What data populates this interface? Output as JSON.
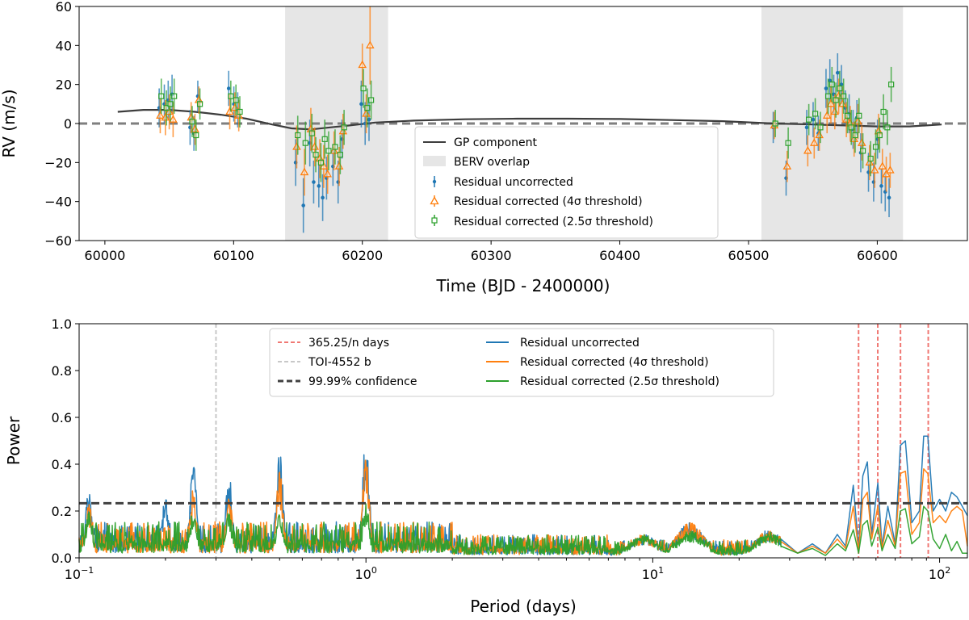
{
  "chart_data": [
    {
      "type": "scatter",
      "xlabel": "Time (BJD - 2400000)",
      "ylabel": "RV (m/s)",
      "xlim": [
        59980,
        60670
      ],
      "ylim": [
        -60,
        60
      ],
      "xticks": [
        60000,
        60100,
        60200,
        60300,
        60400,
        60500,
        60600
      ],
      "yticks": [
        -60,
        -40,
        -20,
        0,
        20,
        40,
        60
      ],
      "xtick_labels": [
        "60000",
        "60100",
        "60200",
        "60300",
        "60400",
        "60500",
        "60600"
      ],
      "ytick_labels": [
        "−60",
        "−40",
        "−20",
        "0",
        "20",
        "40",
        "60"
      ],
      "zero_line": 0,
      "shaded_regions": [
        [
          60140,
          60220
        ],
        [
          60510,
          60620
        ]
      ],
      "legend_position": "lower-center",
      "legend": [
        "GP component",
        "BERV overlap",
        "Residual uncorrected",
        "Residual corrected (4σ threshold)",
        "Residual corrected (2.5σ threshold)"
      ],
      "gp_component": {
        "x": [
          60010,
          60030,
          60050,
          60070,
          60090,
          60110,
          60130,
          60145,
          60160,
          60175,
          60190,
          60210,
          60240,
          60280,
          60320,
          60360,
          60400,
          60440,
          60480,
          60520,
          60550,
          60575,
          60600,
          60625,
          60650
        ],
        "y": [
          6,
          7,
          7,
          6,
          4.5,
          2.5,
          -0.5,
          -2.5,
          -3,
          -2,
          -1,
          0.5,
          1.5,
          2.2,
          2.5,
          2.5,
          2.3,
          1.8,
          1.2,
          0,
          -0.5,
          -1,
          -1.5,
          -1.5,
          -0.5
        ]
      },
      "series": [
        {
          "name": "Residual uncorrected",
          "color": "#1f77b4",
          "x": [
            60043,
            60047,
            60050,
            60053,
            60067,
            60070,
            60073,
            60097,
            60101,
            60104,
            60149,
            60155,
            60160,
            60163,
            60167,
            60170,
            60173,
            60178,
            60182,
            60185,
            60200,
            60203,
            60206,
            60520,
            60530,
            60546,
            60551,
            60555,
            60561,
            60564,
            60567,
            60570,
            60573,
            60576,
            60579,
            60582,
            60585,
            60588,
            60594,
            60598,
            60601,
            60604,
            60607,
            60610
          ],
          "y": [
            8,
            10,
            12,
            15,
            -2,
            -5,
            14,
            18,
            10,
            7,
            -20,
            -42,
            -10,
            -30,
            -32,
            -38,
            -28,
            -22,
            -30,
            -8,
            10,
            0,
            2,
            -2,
            -28,
            -2,
            2,
            -5,
            18,
            22,
            15,
            26,
            20,
            8,
            5,
            -3,
            3,
            -15,
            -25,
            -30,
            -8,
            -32,
            -35,
            -38
          ],
          "err": [
            10,
            10,
            10,
            10,
            9,
            9,
            8,
            9,
            9,
            9,
            12,
            14,
            12,
            11,
            11,
            12,
            11,
            10,
            11,
            10,
            12,
            11,
            11,
            8,
            9,
            9,
            9,
            9,
            10,
            11,
            10,
            10,
            10,
            9,
            10,
            10,
            9,
            10,
            10,
            10,
            10,
            9,
            10,
            10
          ]
        },
        {
          "name": "Residual corrected (4σ threshold)",
          "color": "#ff7f0e",
          "x": [
            60043,
            60047,
            60050,
            60053,
            60067,
            60070,
            60073,
            60097,
            60101,
            60104,
            60149,
            60155,
            60160,
            60163,
            60167,
            60170,
            60173,
            60178,
            60182,
            60185,
            60200,
            60203,
            60206,
            60520,
            60530,
            60546,
            60551,
            60555,
            60561,
            60564,
            60567,
            60570,
            60573,
            60576,
            60579,
            60582,
            60585,
            60588,
            60594,
            60598,
            60601,
            60604,
            60607,
            60610
          ],
          "y": [
            4,
            3,
            6,
            2,
            3,
            -3,
            12,
            6,
            8,
            4,
            -12,
            -25,
            -3,
            -12,
            -18,
            -22,
            -26,
            -14,
            -22,
            -4,
            30,
            5,
            40,
            -1,
            -22,
            -14,
            -10,
            -6,
            4,
            10,
            6,
            14,
            10,
            2,
            0,
            -8,
            1,
            -10,
            -20,
            -24,
            -4,
            -22,
            -26,
            -24
          ],
          "err": [
            9,
            9,
            9,
            9,
            8,
            8,
            7,
            9,
            8,
            8,
            11,
            12,
            11,
            10,
            10,
            11,
            10,
            10,
            10,
            9,
            11,
            10,
            20,
            7,
            8,
            8,
            8,
            8,
            9,
            10,
            9,
            9,
            9,
            9,
            9,
            9,
            9,
            9,
            9,
            9,
            9,
            9,
            9,
            9
          ]
        },
        {
          "name": "Residual corrected (2.5σ threshold)",
          "color": "#2ca02c",
          "x": [
            60043,
            60047,
            60050,
            60053,
            60067,
            60070,
            60073,
            60097,
            60101,
            60104,
            60149,
            60155,
            60160,
            60163,
            60167,
            60170,
            60173,
            60178,
            60182,
            60185,
            60200,
            60203,
            60206,
            60520,
            60530,
            60546,
            60551,
            60555,
            60561,
            60564,
            60567,
            60570,
            60573,
            60576,
            60579,
            60582,
            60585,
            60588,
            60594,
            60598,
            60601,
            60604,
            60607,
            60610
          ],
          "y": [
            14,
            8,
            10,
            14,
            1,
            -6,
            10,
            14,
            12,
            6,
            -6,
            -10,
            -5,
            -16,
            -20,
            -8,
            -14,
            -12,
            -16,
            -2,
            18,
            8,
            12,
            0,
            -10,
            2,
            5,
            -2,
            14,
            20,
            12,
            18,
            14,
            4,
            -2,
            -6,
            4,
            -14,
            -18,
            -12,
            -6,
            6,
            -2,
            20
          ],
          "err": [
            9,
            9,
            9,
            9,
            8,
            8,
            8,
            8,
            8,
            8,
            10,
            11,
            10,
            9,
            10,
            10,
            10,
            9,
            10,
            9,
            10,
            10,
            10,
            7,
            8,
            8,
            8,
            8,
            9,
            9,
            9,
            9,
            9,
            9,
            9,
            9,
            9,
            9,
            9,
            9,
            9,
            9,
            9,
            9
          ]
        }
      ]
    },
    {
      "type": "line",
      "xscale": "log",
      "xlabel": "Period (days)",
      "ylabel": "Power",
      "xlim": [
        0.1,
        125
      ],
      "ylim": [
        0.0,
        1.0
      ],
      "xticks": [
        0.1,
        1,
        10,
        100
      ],
      "yticks": [
        0.0,
        0.2,
        0.4,
        0.6,
        0.8,
        1.0
      ],
      "xtick_labels": [
        "10",
        "10",
        "10",
        "10"
      ],
      "xtick_exponents": [
        "−1",
        "0",
        "1",
        "2"
      ],
      "ytick_labels": [
        "0.0",
        "0.2",
        "0.4",
        "0.6",
        "0.8",
        "1.0"
      ],
      "legend_position": "upper-center",
      "legend": [
        "365.25/n days",
        "TOI-4552 b",
        "99.99% confidence",
        "Residual uncorrected",
        "Residual corrected (4σ threshold)",
        "Residual corrected (2.5σ threshold)"
      ],
      "confidence_level": 0.233,
      "planet_period": 0.3,
      "alias_periods": [
        52.18,
        60.88,
        73.05,
        91.31
      ],
      "series": [
        {
          "name": "Residual uncorrected",
          "color": "#1f77b4",
          "peaks": [
            [
              0.108,
              0.29
            ],
            [
              0.2,
              0.27
            ],
            [
              0.25,
              0.42
            ],
            [
              0.333,
              0.36
            ],
            [
              0.5,
              0.48
            ],
            [
              1.0,
              0.55
            ],
            [
              9.3,
              0.1
            ],
            [
              13.5,
              0.15
            ],
            [
              25.5,
              0.12
            ]
          ],
          "x": [
            28,
            32,
            36,
            40,
            44,
            47,
            50,
            52.2,
            54,
            56,
            58,
            60.9,
            63,
            66,
            70,
            73,
            76,
            80,
            85,
            88,
            91,
            95,
            100,
            105,
            110,
            115,
            120,
            125
          ],
          "y": [
            0.08,
            0.02,
            0.06,
            0.02,
            0.1,
            0.05,
            0.31,
            0.04,
            0.35,
            0.41,
            0.1,
            0.32,
            0.05,
            0.22,
            0.06,
            0.48,
            0.5,
            0.15,
            0.2,
            0.52,
            0.52,
            0.2,
            0.25,
            0.2,
            0.28,
            0.26,
            0.22,
            0.18
          ]
        },
        {
          "name": "Residual corrected (4σ threshold)",
          "color": "#ff7f0e",
          "peaks": [
            [
              0.108,
              0.24
            ],
            [
              0.25,
              0.3
            ],
            [
              0.333,
              0.27
            ],
            [
              0.5,
              0.38
            ],
            [
              1.0,
              0.44
            ],
            [
              9.3,
              0.1
            ],
            [
              13.5,
              0.15
            ],
            [
              25.5,
              0.12
            ]
          ],
          "x": [
            28,
            32,
            36,
            40,
            44,
            47,
            50,
            52.2,
            54,
            56,
            58,
            60.9,
            63,
            66,
            70,
            73,
            76,
            80,
            85,
            88,
            91,
            95,
            100,
            105,
            110,
            115,
            120,
            125
          ],
          "y": [
            0.07,
            0.02,
            0.05,
            0.02,
            0.08,
            0.04,
            0.22,
            0.03,
            0.25,
            0.28,
            0.08,
            0.22,
            0.04,
            0.16,
            0.05,
            0.36,
            0.37,
            0.1,
            0.15,
            0.38,
            0.36,
            0.15,
            0.18,
            0.15,
            0.2,
            0.22,
            0.2,
            0.05
          ]
        },
        {
          "name": "Residual corrected (2.5σ threshold)",
          "color": "#2ca02c",
          "peaks": [
            [
              0.108,
              0.2
            ],
            [
              0.25,
              0.22
            ],
            [
              0.333,
              0.2
            ],
            [
              0.5,
              0.2
            ],
            [
              1.0,
              0.25
            ],
            [
              9.3,
              0.1
            ],
            [
              13.5,
              0.12
            ],
            [
              25.5,
              0.11
            ]
          ],
          "x": [
            28,
            32,
            36,
            40,
            44,
            47,
            50,
            52.2,
            54,
            56,
            58,
            60.9,
            63,
            66,
            70,
            73,
            76,
            80,
            85,
            88,
            91,
            95,
            100,
            105,
            110,
            115,
            120,
            125
          ],
          "y": [
            0.05,
            0.02,
            0.04,
            0.01,
            0.06,
            0.03,
            0.12,
            0.02,
            0.14,
            0.16,
            0.05,
            0.13,
            0.03,
            0.1,
            0.04,
            0.2,
            0.21,
            0.06,
            0.09,
            0.22,
            0.2,
            0.08,
            0.04,
            0.1,
            0.03,
            0.07,
            0.02,
            0.02
          ]
        }
      ]
    }
  ]
}
